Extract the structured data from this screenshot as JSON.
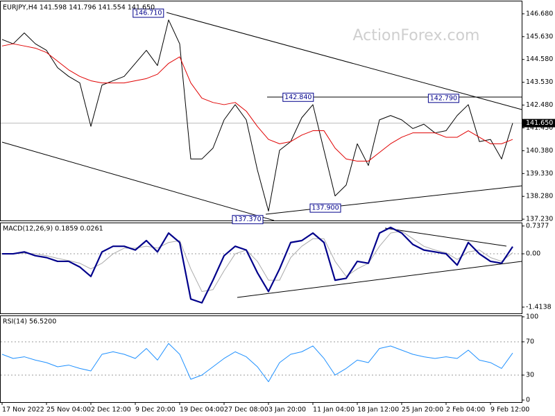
{
  "watermark": "ActionForex.com",
  "chart_data": [
    {
      "type": "line",
      "title": "EURJPY,H4  141.598 141.796 141.554 141.650",
      "ylim": [
        137.17,
        147.22
      ],
      "yticks": [
        {
          "value": 146.68,
          "label": "146.680"
        },
        {
          "value": 145.63,
          "label": "145.630"
        },
        {
          "value": 144.58,
          "label": "144.580"
        },
        {
          "value": 143.53,
          "label": "143.530"
        },
        {
          "value": 142.48,
          "label": "142.480"
        },
        {
          "value": 141.43,
          "label": "141.430"
        },
        {
          "value": 140.38,
          "label": "140.380"
        },
        {
          "value": 139.33,
          "label": "139.330"
        },
        {
          "value": 138.28,
          "label": "138.280"
        },
        {
          "value": 137.23,
          "label": "137.230"
        }
      ],
      "last": {
        "value": 141.65,
        "label": "141.650"
      },
      "series": [
        {
          "color": "#000000",
          "values": [
            145.5,
            145.3,
            145.8,
            145.3,
            145.0,
            144.2,
            143.8,
            143.5,
            141.5,
            143.4,
            143.6,
            143.8,
            144.4,
            145.0,
            144.3,
            146.4,
            145.3,
            140.0,
            140.0,
            140.5,
            141.8,
            142.5,
            141.8,
            139.5,
            137.6,
            140.4,
            140.8,
            141.9,
            142.5,
            140.4,
            138.3,
            138.8,
            140.7,
            139.7,
            141.8,
            142.0,
            141.8,
            141.4,
            141.6,
            141.2,
            141.3,
            142.0,
            142.5,
            140.8,
            140.9,
            140.0,
            141.65
          ]
        },
        {
          "color": "#e00000",
          "values": [
            145.2,
            145.3,
            145.2,
            145.1,
            144.9,
            144.5,
            144.1,
            143.8,
            143.6,
            143.5,
            143.5,
            143.5,
            143.6,
            143.7,
            143.9,
            144.4,
            144.7,
            143.5,
            142.8,
            142.6,
            142.5,
            142.6,
            142.2,
            141.5,
            140.9,
            140.7,
            140.8,
            141.1,
            141.3,
            141.3,
            140.5,
            140.0,
            139.9,
            139.9,
            140.3,
            140.7,
            141.0,
            141.2,
            141.2,
            141.2,
            141.0,
            141.0,
            141.3,
            141.0,
            140.7,
            140.7,
            140.9
          ]
        }
      ],
      "annotations": [
        {
          "x": 14.8,
          "value": 146.71,
          "label": "146.710"
        },
        {
          "x": 28.3,
          "value": 142.84,
          "label": "142.840"
        },
        {
          "x": 41.4,
          "value": 142.79,
          "label": "142.790"
        },
        {
          "x": 23.75,
          "value": 137.37,
          "label": "137.370"
        },
        {
          "x": 30.75,
          "value": 137.9,
          "label": "137.900"
        }
      ]
    },
    {
      "type": "line",
      "title": "MACD(12,26,9) 0.1859 0.0261",
      "ylim": [
        -1.58,
        0.81
      ],
      "yticks": [
        0.7377,
        {
          "value": 0,
          "label": "0.00"
        },
        -1.4138
      ],
      "levels": [
        0
      ],
      "series": [
        {
          "color": "#aaaaaa",
          "values": [
            0.0,
            0.0,
            0.02,
            0.0,
            -0.05,
            -0.12,
            -0.18,
            -0.25,
            -0.4,
            -0.25,
            0.0,
            0.15,
            0.15,
            0.2,
            0.15,
            0.3,
            0.35,
            -0.4,
            -1.0,
            -0.95,
            -0.45,
            0.0,
            0.1,
            -0.2,
            -0.7,
            -0.7,
            -0.1,
            0.2,
            0.4,
            0.4,
            -0.2,
            -0.6,
            -0.4,
            -0.25,
            0.2,
            0.55,
            0.6,
            0.4,
            0.2,
            0.1,
            0.03,
            -0.15,
            0.05,
            0.1,
            -0.1,
            -0.2,
            0.03
          ]
        },
        {
          "color": "#00008b",
          "values": [
            0.0,
            0.0,
            0.05,
            -0.05,
            -0.1,
            -0.2,
            -0.2,
            -0.35,
            -0.6,
            0.05,
            0.2,
            0.2,
            0.1,
            0.35,
            0.05,
            0.55,
            0.3,
            -1.2,
            -1.3,
            -0.7,
            -0.05,
            0.2,
            0.1,
            -0.5,
            -1.0,
            -0.4,
            0.3,
            0.35,
            0.55,
            0.3,
            -0.7,
            -0.65,
            -0.2,
            -0.25,
            0.55,
            0.7,
            0.55,
            0.25,
            0.1,
            0.05,
            0.0,
            -0.3,
            0.3,
            0.0,
            -0.2,
            -0.25,
            0.19
          ]
        }
      ]
    },
    {
      "type": "line",
      "title": "RSI(14) 56.5200",
      "ylim": [
        -2.5,
        100.8
      ],
      "yticks": [
        100,
        70,
        30,
        0
      ],
      "levels": [
        30,
        70
      ],
      "categories": [
        "17 Nov 2022",
        null,
        null,
        null,
        "25 Nov 04:00",
        null,
        null,
        null,
        "2 Dec 12:00",
        null,
        null,
        null,
        "9 Dec 20:00",
        null,
        null,
        null,
        "19 Dec 04:00",
        null,
        null,
        null,
        "27 Dec 08:00",
        null,
        null,
        null,
        "3 Jan 20:00",
        null,
        null,
        null,
        "11 Jan 04:00",
        null,
        null,
        null,
        "18 Jan 12:00",
        null,
        null,
        null,
        "25 Jan 20:00",
        null,
        null,
        null,
        "2 Feb 04:00",
        null,
        null,
        null,
        "9 Feb 12:00",
        null,
        null
      ],
      "series": [
        {
          "color": "#1e90ff",
          "values": [
            55,
            50,
            52,
            48,
            45,
            40,
            42,
            38,
            35,
            55,
            58,
            55,
            50,
            62,
            48,
            68,
            55,
            25,
            30,
            40,
            50,
            58,
            52,
            40,
            22,
            45,
            55,
            58,
            65,
            50,
            30,
            38,
            48,
            45,
            62,
            65,
            60,
            55,
            52,
            50,
            52,
            50,
            60,
            48,
            45,
            38,
            56.52
          ]
        }
      ]
    }
  ]
}
